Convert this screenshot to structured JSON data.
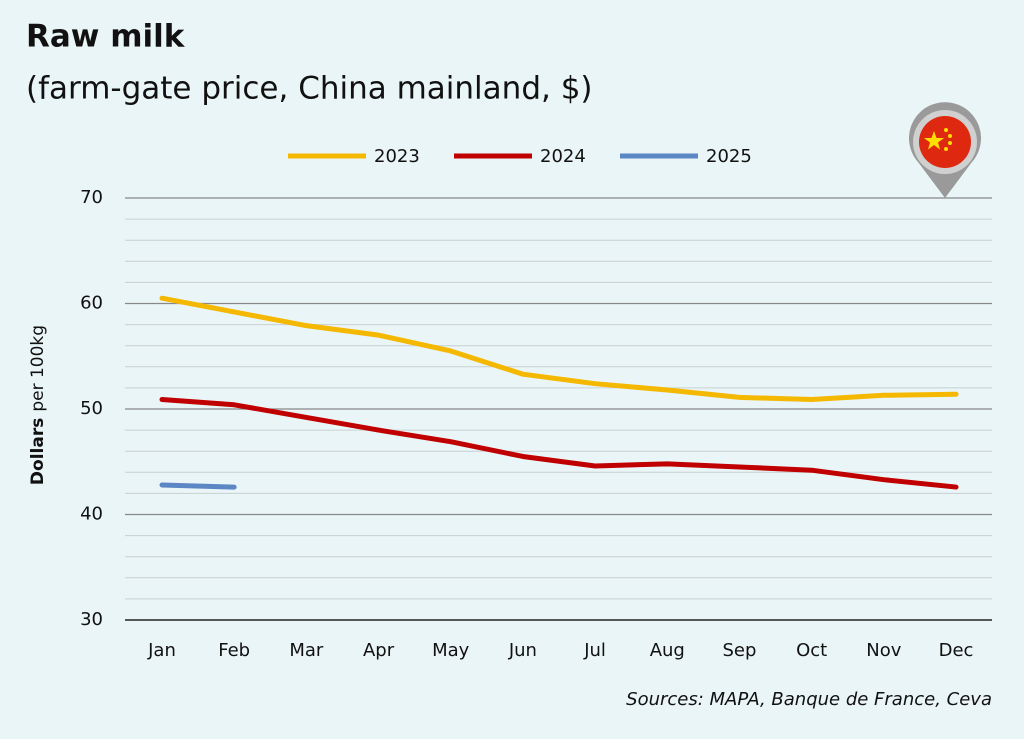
{
  "chart_data": {
    "type": "line",
    "title": "Raw milk",
    "subtitle": "(farm-gate price, China mainland, $)",
    "ylabel": {
      "bold": "Dollars",
      "rest": "per 100kg"
    },
    "source": "Sources: MAPA, Banque de France, Ceva",
    "categories": [
      "Jan",
      "Feb",
      "Mar",
      "Apr",
      "May",
      "Jun",
      "Jul",
      "Aug",
      "Sep",
      "Oct",
      "Nov",
      "Dec"
    ],
    "series": [
      {
        "name": "2023",
        "color": "#f5b800",
        "values": [
          60.5,
          59.2,
          57.9,
          57.0,
          55.5,
          53.3,
          52.4,
          51.8,
          51.1,
          50.9,
          51.3,
          51.4
        ]
      },
      {
        "name": "2024",
        "color": "#c00000",
        "values": [
          50.9,
          50.4,
          49.2,
          48.0,
          46.9,
          45.5,
          44.6,
          44.8,
          44.5,
          44.2,
          43.3,
          42.6
        ]
      },
      {
        "name": "2025",
        "color": "#5b87c5",
        "values": [
          42.8,
          42.6,
          null,
          null,
          null,
          null,
          null,
          null,
          null,
          null,
          null,
          null
        ]
      }
    ],
    "ylim": [
      30,
      70
    ],
    "yticks": [
      30,
      40,
      50,
      60,
      70
    ],
    "minor_yticks": [
      32,
      34,
      36,
      38,
      42,
      44,
      46,
      48,
      52,
      54,
      56,
      58,
      62,
      64,
      66,
      68
    ],
    "grid": true,
    "legend": "top"
  }
}
